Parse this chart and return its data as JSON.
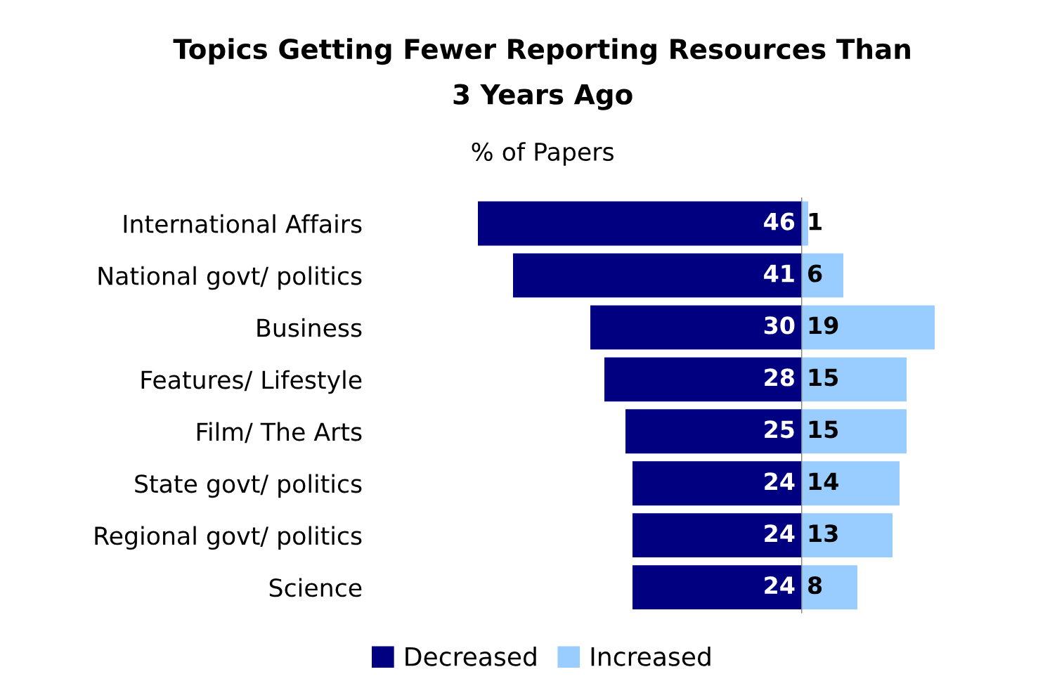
{
  "chart_data": [
    {
      "type": "bar",
      "orientation": "horizontal",
      "title": "Topics Getting Fewer Reporting Resources Than\n3 Years Ago",
      "subtitle": "% of Papers",
      "categories": [
        "International Affairs",
        "National govt/ politics",
        "Business",
        "Features/ Lifestyle",
        "Film/ The Arts",
        "State govt/ politics",
        "Regional govt/ politics",
        "Science"
      ],
      "series": [
        {
          "name": "Decreased",
          "color": "#000080",
          "values": [
            46,
            41,
            30,
            28,
            25,
            24,
            24,
            24
          ]
        }
      ],
      "data_labels": true,
      "xlim": [
        46,
        0
      ],
      "legend": "bottom",
      "tick_labels": "y"
    },
    {
      "type": "bar",
      "orientation": "horizontal",
      "categories": [
        null,
        null,
        null,
        null,
        null,
        null,
        null,
        null
      ],
      "series": [
        {
          "name": "Increased",
          "color": "#99ccff",
          "values": [
            1,
            6,
            19,
            15,
            15,
            14,
            13,
            8
          ]
        }
      ],
      "data_labels": true,
      "xlim": [
        0,
        19
      ],
      "legend": "bottom",
      "tick_labels": false
    }
  ]
}
